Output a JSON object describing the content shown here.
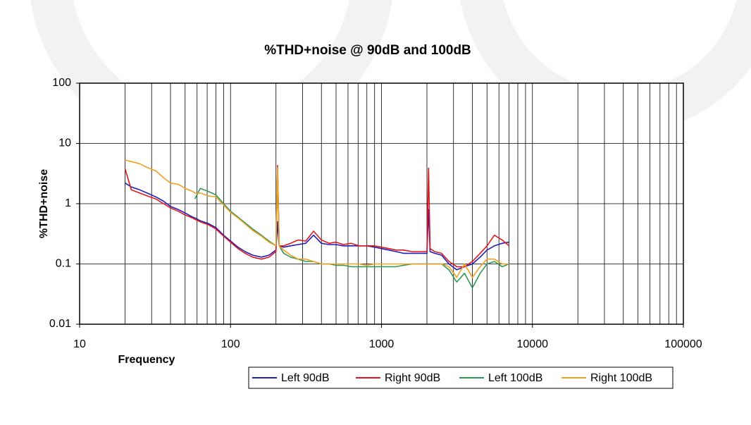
{
  "chart_data": {
    "type": "line",
    "title": "%THD+noise @ 90dB and 100dB",
    "x_label": "Frequency",
    "y_label": "%THD+noise",
    "x_log": true,
    "y_log": true,
    "grid": true,
    "minor_grid": true,
    "legend": "bottom",
    "xlim": [
      10,
      100000
    ],
    "ylim": [
      0.01,
      100
    ],
    "xticks": [
      10,
      100,
      1000,
      10000,
      100000
    ],
    "yticks": [
      0.01,
      0.1,
      1,
      10,
      100
    ],
    "x": [
      20,
      22,
      25,
      28,
      32,
      36,
      40,
      45,
      50,
      56,
      58,
      63,
      71,
      80,
      90,
      100,
      112,
      125,
      140,
      160,
      180,
      200,
      205,
      210,
      225,
      250,
      280,
      315,
      355,
      400,
      450,
      500,
      560,
      630,
      710,
      800,
      900,
      1000,
      1120,
      1250,
      1400,
      1600,
      1800,
      2000,
      2050,
      2100,
      2250,
      2500,
      2800,
      3150,
      3550,
      4000,
      4500,
      5000,
      5600,
      6300,
      7000
    ],
    "series": [
      {
        "name": "Left 90dB",
        "color": "#1f1fb4",
        "values": [
          2.2,
          1.9,
          1.7,
          1.5,
          1.3,
          1.1,
          0.9,
          0.8,
          0.7,
          0.6,
          0.58,
          0.52,
          0.47,
          0.4,
          0.3,
          0.24,
          0.19,
          0.16,
          0.14,
          0.13,
          0.14,
          0.17,
          0.5,
          0.2,
          0.19,
          0.2,
          0.21,
          0.22,
          0.3,
          0.22,
          0.21,
          0.21,
          0.2,
          0.2,
          0.2,
          0.2,
          0.19,
          0.18,
          0.17,
          0.16,
          0.15,
          0.15,
          0.15,
          0.15,
          0.8,
          0.16,
          0.15,
          0.14,
          0.1,
          0.08,
          0.09,
          0.1,
          0.13,
          0.17,
          0.2,
          0.22,
          0.23
        ]
      },
      {
        "name": "Right 90dB",
        "color": "#e0161e",
        "values": [
          3.8,
          1.7,
          1.5,
          1.35,
          1.2,
          1.0,
          0.85,
          0.75,
          0.65,
          0.58,
          0.55,
          0.5,
          0.45,
          0.38,
          0.29,
          0.23,
          0.18,
          0.15,
          0.13,
          0.12,
          0.13,
          0.16,
          4.3,
          0.2,
          0.2,
          0.22,
          0.25,
          0.24,
          0.35,
          0.25,
          0.22,
          0.23,
          0.21,
          0.22,
          0.2,
          0.2,
          0.2,
          0.19,
          0.18,
          0.17,
          0.17,
          0.16,
          0.16,
          0.16,
          3.9,
          0.18,
          0.16,
          0.15,
          0.11,
          0.09,
          0.09,
          0.11,
          0.15,
          0.2,
          0.3,
          0.25,
          0.2
        ]
      },
      {
        "name": "Left 100dB",
        "color": "#2e9a5a",
        "values": [
          null,
          null,
          null,
          null,
          null,
          null,
          null,
          null,
          null,
          null,
          1.2,
          1.8,
          1.6,
          1.4,
          1.0,
          0.75,
          0.6,
          0.48,
          0.38,
          0.3,
          0.24,
          0.2,
          3.5,
          0.2,
          0.15,
          0.13,
          0.12,
          0.11,
          0.11,
          0.1,
          0.1,
          0.095,
          0.095,
          0.09,
          0.09,
          0.09,
          0.09,
          0.09,
          0.09,
          0.09,
          0.095,
          0.1,
          0.1,
          0.1,
          0.1,
          0.1,
          0.1,
          0.1,
          0.08,
          0.05,
          0.07,
          0.04,
          0.07,
          0.1,
          0.11,
          0.09,
          0.1
        ]
      },
      {
        "name": "Right 100dB",
        "color": "#f0a020",
        "values": [
          5.3,
          5.0,
          4.6,
          4.0,
          3.5,
          2.7,
          2.2,
          2.1,
          1.8,
          1.6,
          1.5,
          1.5,
          1.35,
          1.3,
          0.95,
          0.72,
          0.58,
          0.46,
          0.36,
          0.29,
          0.23,
          0.2,
          4.0,
          0.2,
          0.17,
          0.14,
          0.12,
          0.12,
          0.11,
          0.1,
          0.1,
          0.1,
          0.1,
          0.1,
          0.1,
          0.095,
          0.1,
          0.1,
          0.1,
          0.1,
          0.1,
          0.1,
          0.1,
          0.1,
          0.1,
          0.1,
          0.1,
          0.1,
          0.09,
          0.06,
          0.1,
          0.06,
          0.09,
          0.12,
          0.12,
          0.1,
          0.1
        ]
      }
    ]
  }
}
